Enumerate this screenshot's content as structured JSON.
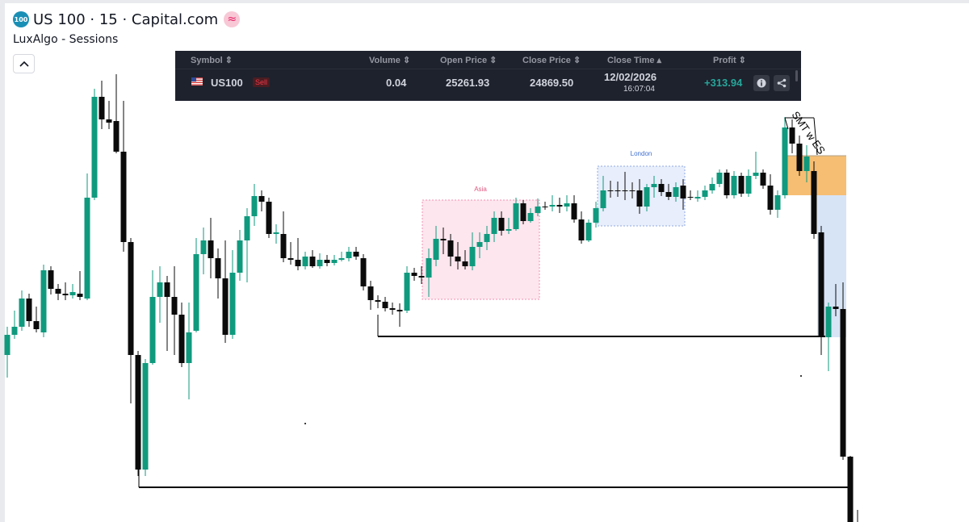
{
  "header": {
    "symbol_logo": "100",
    "title": "US 100 · 15 · Capital.com",
    "status_icon": "≈",
    "indicator": "LuxAlgo - Sessions"
  },
  "trade_panel": {
    "columns": [
      "Symbol",
      "Volume",
      "Open Price",
      "Close Price",
      "Close Time",
      "Profit"
    ],
    "row": {
      "symbol": "US100",
      "side": "Sell",
      "volume": "0.04",
      "open_price": "25261.93",
      "close_price": "24869.50",
      "close_date": "12/02/2026",
      "close_clock": "16:07:04",
      "profit": "+313.94"
    },
    "colors": {
      "profit": "#26a69a",
      "sell": "#f23645",
      "background": "#1e222d"
    }
  },
  "chart_annotations": {
    "asia_label": "Asia",
    "london_label": "London",
    "smt_label": "SMT w ES"
  },
  "colors": {
    "bull": "#0f9a7e",
    "bear": "#0b0b0b",
    "asia_box": "#fde6ee",
    "asia_border": "#f48fb1",
    "london_box": "#e8eefb",
    "london_border": "#90a8e0",
    "orange_zone": "#f4b35a",
    "blue_zone": "#d7e4f6"
  }
}
